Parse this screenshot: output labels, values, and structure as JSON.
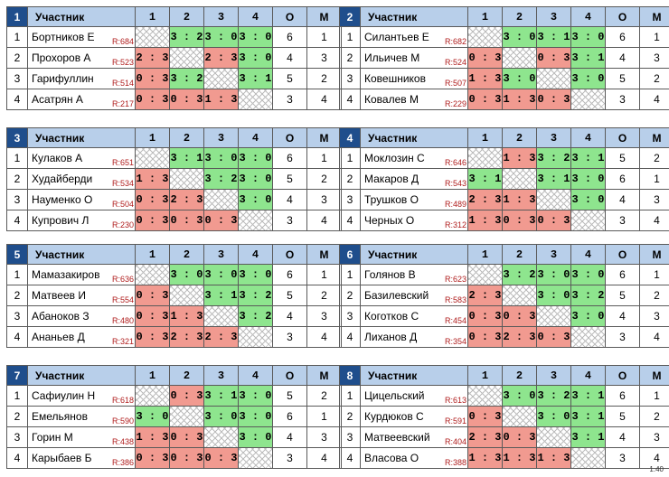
{
  "header": {
    "participant": "Участник",
    "cols": [
      "1",
      "2",
      "3",
      "4"
    ],
    "o": "О",
    "m": "М"
  },
  "version": "1.40",
  "groups": [
    {
      "num": "1",
      "rows": [
        {
          "n": "1",
          "name": "Бортников Е",
          "rating": "R:684",
          "cells": [
            "",
            "3 : 2",
            "3 : 0",
            "3 : 0"
          ],
          "o": "6",
          "m": "1"
        },
        {
          "n": "2",
          "name": "Прохоров А",
          "rating": "R:523",
          "cells": [
            "2 : 3",
            "",
            "2 : 3",
            "3 : 0"
          ],
          "o": "4",
          "m": "3"
        },
        {
          "n": "3",
          "name": "Гарифуллин",
          "rating": "R:514",
          "cells": [
            "0 : 3",
            "3 : 2",
            "",
            "3 : 1"
          ],
          "o": "5",
          "m": "2"
        },
        {
          "n": "4",
          "name": "Асатрян А",
          "rating": "R:217",
          "cells": [
            "0 : 3",
            "0 : 3",
            "1 : 3",
            ""
          ],
          "o": "3",
          "m": "4"
        }
      ]
    },
    {
      "num": "2",
      "rows": [
        {
          "n": "1",
          "name": "Силантьев Е",
          "rating": "R:682",
          "cells": [
            "",
            "3 : 0",
            "3 : 1",
            "3 : 0"
          ],
          "o": "6",
          "m": "1"
        },
        {
          "n": "2",
          "name": "Ильичев М",
          "rating": "R:524",
          "cells": [
            "0 : 3",
            "",
            "0 : 3",
            "3 : 1"
          ],
          "o": "4",
          "m": "3"
        },
        {
          "n": "3",
          "name": "Ковешников",
          "rating": "R:507",
          "cells": [
            "1 : 3",
            "3 : 0",
            "",
            "3 : 0"
          ],
          "o": "5",
          "m": "2"
        },
        {
          "n": "4",
          "name": "Ковалев М",
          "rating": "R:229",
          "cells": [
            "0 : 3",
            "1 : 3",
            "0 : 3",
            ""
          ],
          "o": "3",
          "m": "4"
        }
      ]
    },
    {
      "num": "3",
      "rows": [
        {
          "n": "1",
          "name": "Кулаков А",
          "rating": "R:651",
          "cells": [
            "",
            "3 : 1",
            "3 : 0",
            "3 : 0"
          ],
          "o": "6",
          "m": "1"
        },
        {
          "n": "2",
          "name": "Худайберди",
          "rating": "R:534",
          "cells": [
            "1 : 3",
            "",
            "3 : 2",
            "3 : 0"
          ],
          "o": "5",
          "m": "2"
        },
        {
          "n": "3",
          "name": "Науменко О",
          "rating": "R:504",
          "cells": [
            "0 : 3",
            "2 : 3",
            "",
            "3 : 0"
          ],
          "o": "4",
          "m": "3"
        },
        {
          "n": "4",
          "name": "Купрович Л",
          "rating": "R:230",
          "cells": [
            "0 : 3",
            "0 : 3",
            "0 : 3",
            ""
          ],
          "o": "3",
          "m": "4"
        }
      ]
    },
    {
      "num": "4",
      "rows": [
        {
          "n": "1",
          "name": "Моклозин С",
          "rating": "R:646",
          "cells": [
            "",
            "1 : 3",
            "3 : 2",
            "3 : 1"
          ],
          "o": "5",
          "m": "2"
        },
        {
          "n": "2",
          "name": "Макаров Д",
          "rating": "R:543",
          "cells": [
            "3 : 1",
            "",
            "3 : 1",
            "3 : 0"
          ],
          "o": "6",
          "m": "1"
        },
        {
          "n": "3",
          "name": "Трушков О",
          "rating": "R:489",
          "cells": [
            "2 : 3",
            "1 : 3",
            "",
            "3 : 0"
          ],
          "o": "4",
          "m": "3"
        },
        {
          "n": "4",
          "name": "Черных О",
          "rating": "R:312",
          "cells": [
            "1 : 3",
            "0 : 3",
            "0 : 3",
            ""
          ],
          "o": "3",
          "m": "4"
        }
      ]
    },
    {
      "num": "5",
      "rows": [
        {
          "n": "1",
          "name": "Мамазакиров",
          "rating": "R:636",
          "cells": [
            "",
            "3 : 0",
            "3 : 0",
            "3 : 0"
          ],
          "o": "6",
          "m": "1"
        },
        {
          "n": "2",
          "name": "Матвеев И",
          "rating": "R:554",
          "cells": [
            "0 : 3",
            "",
            "3 : 1",
            "3 : 2"
          ],
          "o": "5",
          "m": "2"
        },
        {
          "n": "3",
          "name": "Абаноков З",
          "rating": "R:480",
          "cells": [
            "0 : 3",
            "1 : 3",
            "",
            "3 : 2"
          ],
          "o": "4",
          "m": "3"
        },
        {
          "n": "4",
          "name": "Ананьев Д",
          "rating": "R:321",
          "cells": [
            "0 : 3",
            "2 : 3",
            "2 : 3",
            ""
          ],
          "o": "3",
          "m": "4"
        }
      ]
    },
    {
      "num": "6",
      "rows": [
        {
          "n": "1",
          "name": "Голянов В",
          "rating": "R:623",
          "cells": [
            "",
            "3 : 2",
            "3 : 0",
            "3 : 0"
          ],
          "o": "6",
          "m": "1"
        },
        {
          "n": "2",
          "name": "Базилевский",
          "rating": "R:583",
          "cells": [
            "2 : 3",
            "",
            "3 : 0",
            "3 : 2"
          ],
          "o": "5",
          "m": "2"
        },
        {
          "n": "3",
          "name": "Коготков С",
          "rating": "R:454",
          "cells": [
            "0 : 3",
            "0 : 3",
            "",
            "3 : 0"
          ],
          "o": "4",
          "m": "3"
        },
        {
          "n": "4",
          "name": "Лиханов Д",
          "rating": "R:354",
          "cells": [
            "0 : 3",
            "2 : 3",
            "0 : 3",
            ""
          ],
          "o": "3",
          "m": "4"
        }
      ]
    },
    {
      "num": "7",
      "rows": [
        {
          "n": "1",
          "name": "Сафиулин Н",
          "rating": "R:618",
          "cells": [
            "",
            "0 : 3",
            "3 : 1",
            "3 : 0"
          ],
          "o": "5",
          "m": "2"
        },
        {
          "n": "2",
          "name": "Емельянов",
          "rating": "R:590",
          "cells": [
            "3 : 0",
            "",
            "3 : 0",
            "3 : 0"
          ],
          "o": "6",
          "m": "1"
        },
        {
          "n": "3",
          "name": "Горин М",
          "rating": "R:438",
          "cells": [
            "1 : 3",
            "0 : 3",
            "",
            "3 : 0"
          ],
          "o": "4",
          "m": "3"
        },
        {
          "n": "4",
          "name": "Карыбаев Б",
          "rating": "R:386",
          "cells": [
            "0 : 3",
            "0 : 3",
            "0 : 3",
            ""
          ],
          "o": "3",
          "m": "4"
        }
      ]
    },
    {
      "num": "8",
      "rows": [
        {
          "n": "1",
          "name": "Цицельский",
          "rating": "R:613",
          "cells": [
            "",
            "3 : 0",
            "3 : 2",
            "3 : 1"
          ],
          "o": "6",
          "m": "1"
        },
        {
          "n": "2",
          "name": "Курдюков С",
          "rating": "R:591",
          "cells": [
            "0 : 3",
            "",
            "3 : 0",
            "3 : 1"
          ],
          "o": "5",
          "m": "2"
        },
        {
          "n": "3",
          "name": "Матвеевский",
          "rating": "R:404",
          "cells": [
            "2 : 3",
            "0 : 3",
            "",
            "3 : 1"
          ],
          "o": "4",
          "m": "3"
        },
        {
          "n": "4",
          "name": "Власова О",
          "rating": "R:388",
          "cells": [
            "1 : 3",
            "1 : 3",
            "1 : 3",
            ""
          ],
          "o": "3",
          "m": "4"
        }
      ]
    }
  ]
}
